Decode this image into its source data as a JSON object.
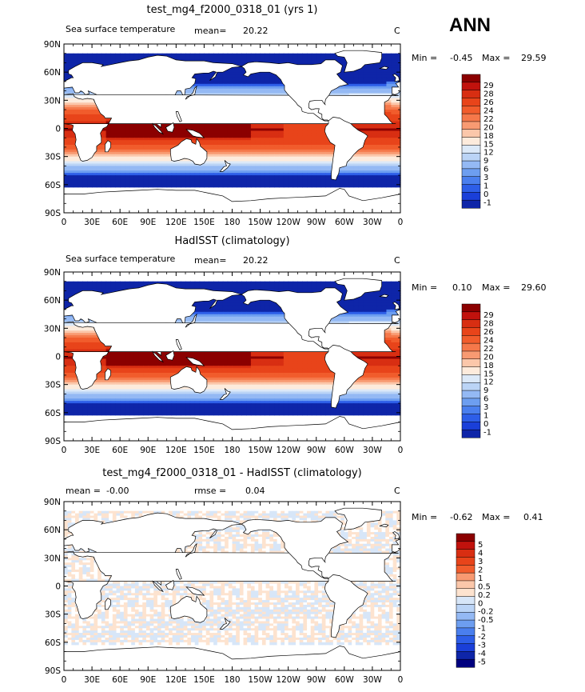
{
  "season": "ANN",
  "lat_ticks": [
    "90N",
    "60N",
    "30N",
    "0",
    "30S",
    "60S",
    "90S"
  ],
  "lon_ticks": [
    "0",
    "30E",
    "60E",
    "90E",
    "120E",
    "150E",
    "180",
    "150W",
    "120W",
    "90W",
    "60W",
    "30W",
    "0"
  ],
  "panels": [
    {
      "title": "test_mg4_f2000_0318_01 (yrs 1)",
      "left_label": "Sea surface temperature",
      "mean_label": "mean=",
      "mean_value": "20.22",
      "unit": "C",
      "min_label": "Min =",
      "min_value": "-0.45",
      "max_label": "Max =",
      "max_value": "29.59",
      "colorbar_labels": [
        "29",
        "28",
        "26",
        "24",
        "22",
        "20",
        "18",
        "15",
        "12",
        "9",
        "6",
        "3",
        "1",
        "0",
        "-1"
      ],
      "colorbar_colors": [
        "#8b0000",
        "#c1120d",
        "#d82e12",
        "#e8441a",
        "#f15c2c",
        "#f5784a",
        "#f89a72",
        "#fbc7aa",
        "#fdebdc",
        "#dce9f8",
        "#bbd4f6",
        "#94b9f4",
        "#6d9ef0",
        "#4a7fee",
        "#2d5ee8",
        "#1a3fd9",
        "#0e25a8"
      ],
      "field": "sst"
    },
    {
      "title": "HadISST (climatology)",
      "left_label": "Sea surface temperature",
      "mean_label": "mean=",
      "mean_value": "20.22",
      "unit": "C",
      "min_label": "Min =",
      "min_value": "0.10",
      "max_label": "Max =",
      "max_value": "29.60",
      "colorbar_labels": [
        "29",
        "28",
        "26",
        "24",
        "22",
        "20",
        "18",
        "15",
        "12",
        "9",
        "6",
        "3",
        "1",
        "0",
        "-1"
      ],
      "colorbar_colors": [
        "#8b0000",
        "#c1120d",
        "#d82e12",
        "#e8441a",
        "#f15c2c",
        "#f5784a",
        "#f89a72",
        "#fbc7aa",
        "#fdebdc",
        "#dce9f8",
        "#bbd4f6",
        "#94b9f4",
        "#6d9ef0",
        "#4a7fee",
        "#2d5ee8",
        "#1a3fd9",
        "#0e25a8"
      ],
      "field": "sst"
    },
    {
      "title": "test_mg4_f2000_0318_01 - HadISST (climatology)",
      "left_label": "mean =",
      "mean_label": "rmse =",
      "mean_value": "0.04",
      "left_value": "-0.00",
      "unit": "C",
      "min_label": "Min =",
      "min_value": "-0.62",
      "max_label": "Max =",
      "max_value": "0.41",
      "colorbar_labels": [
        "5",
        "4",
        "3",
        "2",
        "1",
        "0.5",
        "0.2",
        "0",
        "-0.2",
        "-0.5",
        "-1",
        "-2",
        "-3",
        "-4",
        "-5"
      ],
      "colorbar_colors": [
        "#8b0000",
        "#c1120d",
        "#d82e12",
        "#e8441a",
        "#f15c2c",
        "#f89a72",
        "#fbc7aa",
        "#fde3cf",
        "#d7e6f8",
        "#bbd4f6",
        "#94b9f4",
        "#6d9ef0",
        "#4a7fee",
        "#2d5ee8",
        "#1a3fd9",
        "#0e25a8",
        "#00007f"
      ],
      "field": "diff"
    }
  ]
}
